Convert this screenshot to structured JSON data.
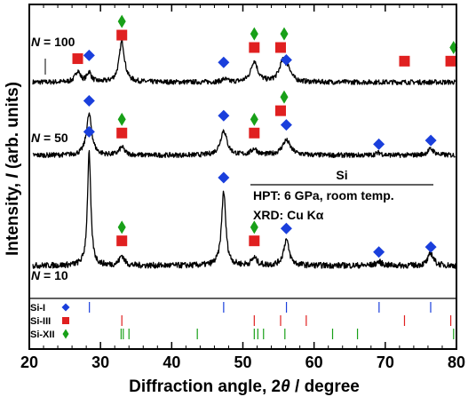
{
  "chart_data": {
    "type": "line",
    "xlabel_parts": [
      "Diffraction angle, 2",
      "θ",
      " / degree"
    ],
    "ylabel_parts": [
      "Intensity, ",
      "I",
      " (arb. units)"
    ],
    "xlim": [
      20,
      80
    ],
    "x_ticks": [
      20,
      30,
      40,
      50,
      60,
      70,
      80
    ],
    "y_ticks_shown": false,
    "info_box": {
      "title": "Si",
      "lines": [
        "HPT: 6 GPa, room temp.",
        "XRD: Cu Kα"
      ]
    },
    "series": [
      {
        "name": "N = 100",
        "label_var": "N",
        "label_val": " = 100",
        "baseline": 0.84,
        "noise": 0.01,
        "peaks": [
          {
            "x": 26.8,
            "h": 0.045,
            "w": 0.4
          },
          {
            "x": 28.4,
            "h": 0.04,
            "w": 0.35
          },
          {
            "x": 33.0,
            "h": 0.165,
            "w": 0.45
          },
          {
            "x": 47.4,
            "h": 0.012,
            "w": 0.4
          },
          {
            "x": 51.6,
            "h": 0.085,
            "w": 0.55
          },
          {
            "x": 55.6,
            "h": 0.08,
            "w": 0.6
          },
          {
            "x": 56.4,
            "h": 0.04,
            "w": 0.45
          }
        ],
        "markers": [
          {
            "x": 26.8,
            "phase": "Si-III",
            "y": 0.935
          },
          {
            "x": 28.4,
            "phase": "Si-I",
            "y": 0.948
          },
          {
            "x": 33.0,
            "phase": "Si-III",
            "y": 1.03
          },
          {
            "x": 33.0,
            "phase": "Si-XII",
            "y": 1.085
          },
          {
            "x": 47.3,
            "phase": "Si-I",
            "y": 0.92
          },
          {
            "x": 51.6,
            "phase": "Si-III",
            "y": 0.98
          },
          {
            "x": 51.6,
            "phase": "Si-XII",
            "y": 1.035
          },
          {
            "x": 55.3,
            "phase": "Si-III",
            "y": 0.98
          },
          {
            "x": 55.8,
            "phase": "Si-XII",
            "y": 1.035
          },
          {
            "x": 56.1,
            "phase": "Si-I",
            "y": 0.93
          },
          {
            "x": 72.7,
            "phase": "Si-III",
            "y": 0.925
          },
          {
            "x": 79.2,
            "phase": "Si-III",
            "y": 0.925
          },
          {
            "x": 79.6,
            "phase": "Si-XII",
            "y": 0.98
          }
        ]
      },
      {
        "name": "N = 50",
        "label_var": "N",
        "label_val": " = 50",
        "baseline": 0.545,
        "noise": 0.01,
        "peaks": [
          {
            "x": 28.4,
            "h": 0.165,
            "w": 0.45
          },
          {
            "x": 33.0,
            "h": 0.032,
            "w": 0.45
          },
          {
            "x": 47.3,
            "h": 0.1,
            "w": 0.55
          },
          {
            "x": 51.6,
            "h": 0.025,
            "w": 0.5
          },
          {
            "x": 56.1,
            "h": 0.06,
            "w": 0.7
          },
          {
            "x": 69.1,
            "h": 0.01,
            "w": 0.5
          },
          {
            "x": 76.4,
            "h": 0.025,
            "w": 0.55
          }
        ],
        "markers": [
          {
            "x": 28.4,
            "phase": "Si-I",
            "y": 0.765
          },
          {
            "x": 33.0,
            "phase": "Si-III",
            "y": 0.635
          },
          {
            "x": 33.0,
            "phase": "Si-XII",
            "y": 0.69
          },
          {
            "x": 47.3,
            "phase": "Si-I",
            "y": 0.705
          },
          {
            "x": 51.6,
            "phase": "Si-III",
            "y": 0.635
          },
          {
            "x": 51.6,
            "phase": "Si-XII",
            "y": 0.69
          },
          {
            "x": 55.3,
            "phase": "Si-III",
            "y": 0.725
          },
          {
            "x": 55.8,
            "phase": "Si-XII",
            "y": 0.78
          },
          {
            "x": 56.1,
            "phase": "Si-I",
            "y": 0.668
          },
          {
            "x": 69.1,
            "phase": "Si-I",
            "y": 0.59
          },
          {
            "x": 76.4,
            "phase": "Si-I",
            "y": 0.605
          }
        ]
      },
      {
        "name": "N = 10",
        "label_var": "N",
        "label_val": " = 10",
        "baseline": 0.1,
        "noise": 0.012,
        "peaks": [
          {
            "x": 28.4,
            "h": 0.455,
            "w": 0.28
          },
          {
            "x": 33.0,
            "h": 0.04,
            "w": 0.4
          },
          {
            "x": 47.3,
            "h": 0.3,
            "w": 0.35
          },
          {
            "x": 51.6,
            "h": 0.03,
            "w": 0.45
          },
          {
            "x": 56.1,
            "h": 0.105,
            "w": 0.45
          },
          {
            "x": 69.1,
            "h": 0.015,
            "w": 0.5
          },
          {
            "x": 76.4,
            "h": 0.05,
            "w": 0.45
          }
        ],
        "markers": [
          {
            "x": 28.4,
            "phase": "Si-I",
            "y": 0.64
          },
          {
            "x": 33.0,
            "phase": "Si-III",
            "y": 0.2
          },
          {
            "x": 33.0,
            "phase": "Si-XII",
            "y": 0.255
          },
          {
            "x": 47.3,
            "phase": "Si-I",
            "y": 0.455
          },
          {
            "x": 51.6,
            "phase": "Si-III",
            "y": 0.2
          },
          {
            "x": 51.6,
            "phase": "Si-XII",
            "y": 0.255
          },
          {
            "x": 56.1,
            "phase": "Si-I",
            "y": 0.25
          },
          {
            "x": 69.1,
            "phase": "Si-I",
            "y": 0.155
          },
          {
            "x": 76.4,
            "phase": "Si-I",
            "y": 0.175
          }
        ]
      }
    ],
    "reference_phases": [
      {
        "name": "Si-I",
        "color": "#1a3fdc",
        "symbol": "diamond",
        "lines": [
          28.44,
          47.3,
          56.12,
          69.13,
          76.38
        ]
      },
      {
        "name": "Si-III",
        "color": "#e02020",
        "symbol": "square",
        "lines": [
          33.0,
          51.6,
          55.3,
          58.9,
          72.7,
          79.2
        ]
      },
      {
        "name": "Si-XII",
        "color": "#18a018",
        "symbol": "diamond",
        "lines": [
          32.9,
          33.2,
          34.0,
          43.6,
          51.6,
          52.1,
          52.9,
          55.9,
          62.6,
          66.1,
          79.6
        ]
      }
    ]
  }
}
